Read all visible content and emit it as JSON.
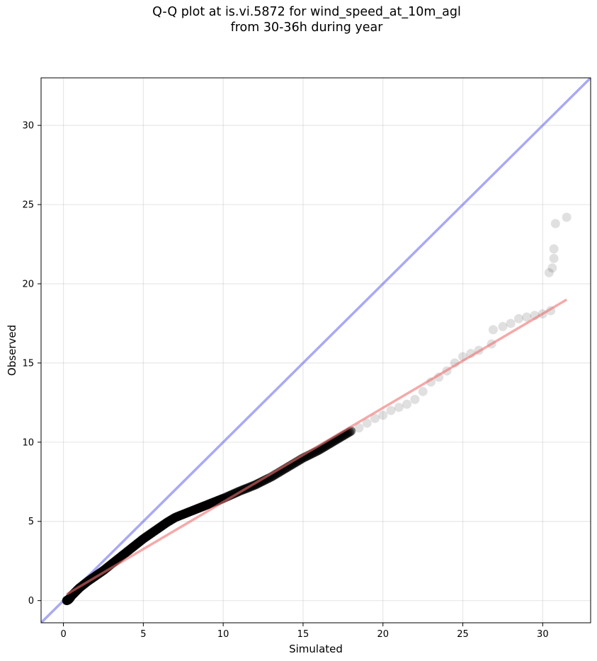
{
  "chart_data": {
    "type": "scatter",
    "title_lines": [
      "Q-Q plot at is.vi.5872 for wind_speed_at_10m_agl",
      "from 30-36h during year"
    ],
    "xlabel": "Simulated",
    "ylabel": "Observed",
    "xlim": [
      -1.4,
      33.0
    ],
    "ylim": [
      -1.4,
      33.0
    ],
    "xticks": [
      0,
      5,
      10,
      15,
      20,
      25,
      30
    ],
    "yticks": [
      0,
      5,
      10,
      15,
      20,
      25,
      30
    ],
    "grid": true,
    "colors": {
      "points": "#000000",
      "identity_line": "#6f6fef",
      "fit_line": "#ef6f6f"
    },
    "identity_line": {
      "x": [
        -1.4,
        33.0
      ],
      "y": [
        -1.4,
        33.0
      ]
    },
    "fit_line": {
      "x": [
        0.2,
        31.5
      ],
      "y": [
        0.4,
        19.0
      ]
    },
    "points_dense": {
      "x": [
        0.2,
        0.3,
        0.4,
        0.5,
        0.7,
        1.0,
        1.5,
        2.0,
        2.5,
        3.0,
        3.5,
        4.0,
        4.5,
        5.0,
        5.5,
        6.0,
        6.5,
        7.0,
        7.5,
        8.0,
        8.5,
        9.0,
        9.5,
        10.0,
        11.0,
        12.0,
        13.0,
        14.0,
        15.0,
        16.0,
        17.0,
        18.0
      ],
      "y": [
        0.0,
        0.05,
        0.15,
        0.3,
        0.5,
        0.8,
        1.2,
        1.55,
        1.9,
        2.3,
        2.7,
        3.1,
        3.5,
        3.9,
        4.25,
        4.6,
        4.95,
        5.25,
        5.45,
        5.65,
        5.85,
        6.05,
        6.25,
        6.45,
        6.9,
        7.3,
        7.8,
        8.4,
        9.0,
        9.5,
        10.1,
        10.7
      ]
    },
    "points_tail": {
      "x": [
        18.5,
        19.0,
        19.5,
        20.0,
        20.5,
        21.0,
        21.5,
        22.0,
        22.5,
        23.0,
        23.5,
        24.0,
        24.5,
        25.0,
        25.5,
        26.0,
        26.8,
        26.9,
        27.5,
        28.0,
        28.5,
        29.0,
        29.5,
        30.0,
        30.5,
        30.4,
        30.6,
        30.7,
        30.7,
        30.8,
        31.5
      ],
      "y": [
        10.9,
        11.2,
        11.5,
        11.7,
        12.0,
        12.2,
        12.4,
        12.7,
        13.2,
        13.8,
        14.1,
        14.5,
        15.0,
        15.4,
        15.6,
        15.8,
        16.2,
        17.1,
        17.3,
        17.5,
        17.8,
        17.9,
        18.0,
        18.1,
        18.3,
        20.7,
        21.0,
        21.6,
        22.2,
        23.8,
        24.2
      ]
    }
  }
}
